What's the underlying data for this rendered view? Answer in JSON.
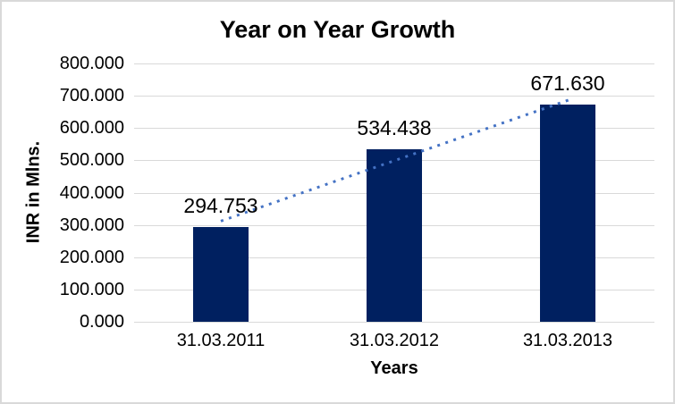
{
  "window": {
    "background_color": "#ffffff",
    "border_color": "#d9d9d9"
  },
  "chart_data": {
    "type": "bar",
    "title": "Year on Year Growth",
    "xlabel": "Years",
    "ylabel": "INR in Mlns.",
    "categories": [
      "31.03.2011",
      "31.03.2012",
      "31.03.2013"
    ],
    "values": [
      294.753,
      534.438,
      671.63
    ],
    "value_labels": [
      "294.753",
      "534.438",
      "671.630"
    ],
    "ylim": [
      0,
      800
    ],
    "ytick_values": [
      800,
      700,
      600,
      500,
      400,
      300,
      200,
      100,
      0
    ],
    "ytick_labels": [
      "800.000",
      "700.000",
      "600.000",
      "500.000",
      "400.000",
      "300.000",
      "200.000",
      "100.000",
      "0.000"
    ],
    "grid": true,
    "legend": false,
    "bar_color": "#002060",
    "gridline_color": "#d9d9d9",
    "text_color": "#000000",
    "trendline": {
      "style": "dotted",
      "color": "#4472c4",
      "start_value": 311.8,
      "end_value": 688.7
    }
  }
}
